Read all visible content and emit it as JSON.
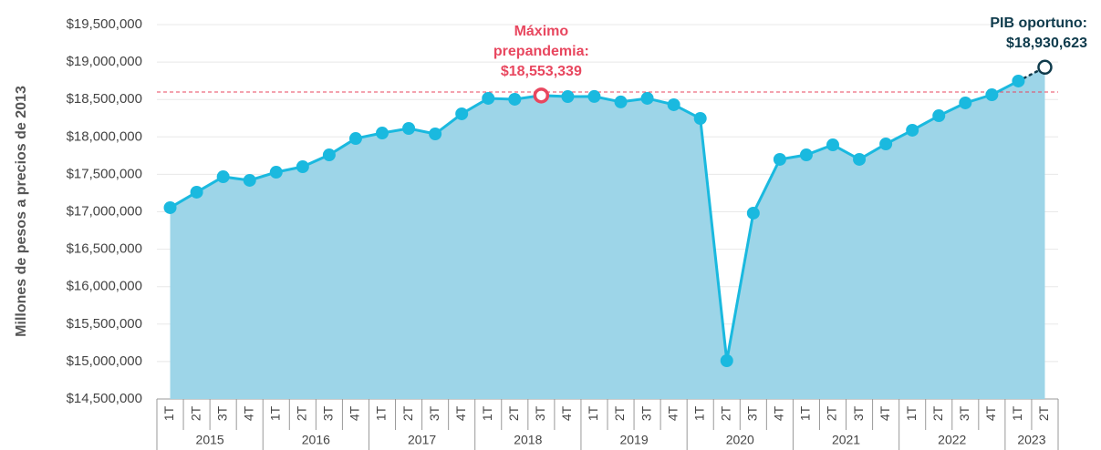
{
  "chart_data": {
    "type": "area-line",
    "y_axis_label": "Millones de pesos a precios de 2013",
    "categories": [
      {
        "year": "2015",
        "quarter": "1T"
      },
      {
        "year": "2015",
        "quarter": "2T"
      },
      {
        "year": "2015",
        "quarter": "3T"
      },
      {
        "year": "2015",
        "quarter": "4T"
      },
      {
        "year": "2016",
        "quarter": "1T"
      },
      {
        "year": "2016",
        "quarter": "2T"
      },
      {
        "year": "2016",
        "quarter": "3T"
      },
      {
        "year": "2016",
        "quarter": "4T"
      },
      {
        "year": "2017",
        "quarter": "1T"
      },
      {
        "year": "2017",
        "quarter": "2T"
      },
      {
        "year": "2017",
        "quarter": "3T"
      },
      {
        "year": "2017",
        "quarter": "4T"
      },
      {
        "year": "2018",
        "quarter": "1T"
      },
      {
        "year": "2018",
        "quarter": "2T"
      },
      {
        "year": "2018",
        "quarter": "3T"
      },
      {
        "year": "2018",
        "quarter": "4T"
      },
      {
        "year": "2019",
        "quarter": "1T"
      },
      {
        "year": "2019",
        "quarter": "2T"
      },
      {
        "year": "2019",
        "quarter": "3T"
      },
      {
        "year": "2019",
        "quarter": "4T"
      },
      {
        "year": "2020",
        "quarter": "1T"
      },
      {
        "year": "2020",
        "quarter": "2T"
      },
      {
        "year": "2020",
        "quarter": "3T"
      },
      {
        "year": "2020",
        "quarter": "4T"
      },
      {
        "year": "2021",
        "quarter": "1T"
      },
      {
        "year": "2021",
        "quarter": "2T"
      },
      {
        "year": "2021",
        "quarter": "3T"
      },
      {
        "year": "2021",
        "quarter": "4T"
      },
      {
        "year": "2022",
        "quarter": "1T"
      },
      {
        "year": "2022",
        "quarter": "2T"
      },
      {
        "year": "2022",
        "quarter": "3T"
      },
      {
        "year": "2022",
        "quarter": "4T"
      },
      {
        "year": "2023",
        "quarter": "1T"
      },
      {
        "year": "2023",
        "quarter": "2T"
      }
    ],
    "series": [
      {
        "color": "#1ab9df",
        "fill": "#9dd5e8",
        "values": [
          17055000,
          17262000,
          17468000,
          17420000,
          17529000,
          17602000,
          17760000,
          17979000,
          18052000,
          18113000,
          18040000,
          18308000,
          18515000,
          18503000,
          18553339,
          18539000,
          18540000,
          18467000,
          18515000,
          18430000,
          18247000,
          15011000,
          16982000,
          17700000,
          17760000,
          17894000,
          17700000,
          17906000,
          18089000,
          18283000,
          18454000,
          18563000,
          18746000,
          18930623
        ]
      }
    ],
    "annotations": [
      {
        "lines": [
          "Máximo",
          "prepandemia:"
        ],
        "value_label": "$18,553,339",
        "color": "#e8475f"
      },
      {
        "lines": [
          "PIB oportuno:"
        ],
        "value_label": "$18,930,623",
        "color": "#0f3b4c"
      }
    ],
    "reference_line": {
      "value": 18600000,
      "color": "#e8475f"
    },
    "ylim": [
      14500000,
      19500000
    ],
    "yticks": [
      {
        "value": 14500000,
        "label": "$14,500,000"
      },
      {
        "value": 15000000,
        "label": "$15,000,000"
      },
      {
        "value": 15500000,
        "label": "$15,500,000"
      },
      {
        "value": 16000000,
        "label": "$16,000,000"
      },
      {
        "value": 16500000,
        "label": "$16,500,000"
      },
      {
        "value": 17000000,
        "label": "$17,000,000"
      },
      {
        "value": 17500000,
        "label": "$17,500,000"
      },
      {
        "value": 18000000,
        "label": "$18,000,000"
      },
      {
        "value": 18500000,
        "label": "$18,500,000"
      },
      {
        "value": 19000000,
        "label": "$19,000,000"
      },
      {
        "value": 19500000,
        "label": "$19,500,000"
      }
    ],
    "grid": true
  }
}
